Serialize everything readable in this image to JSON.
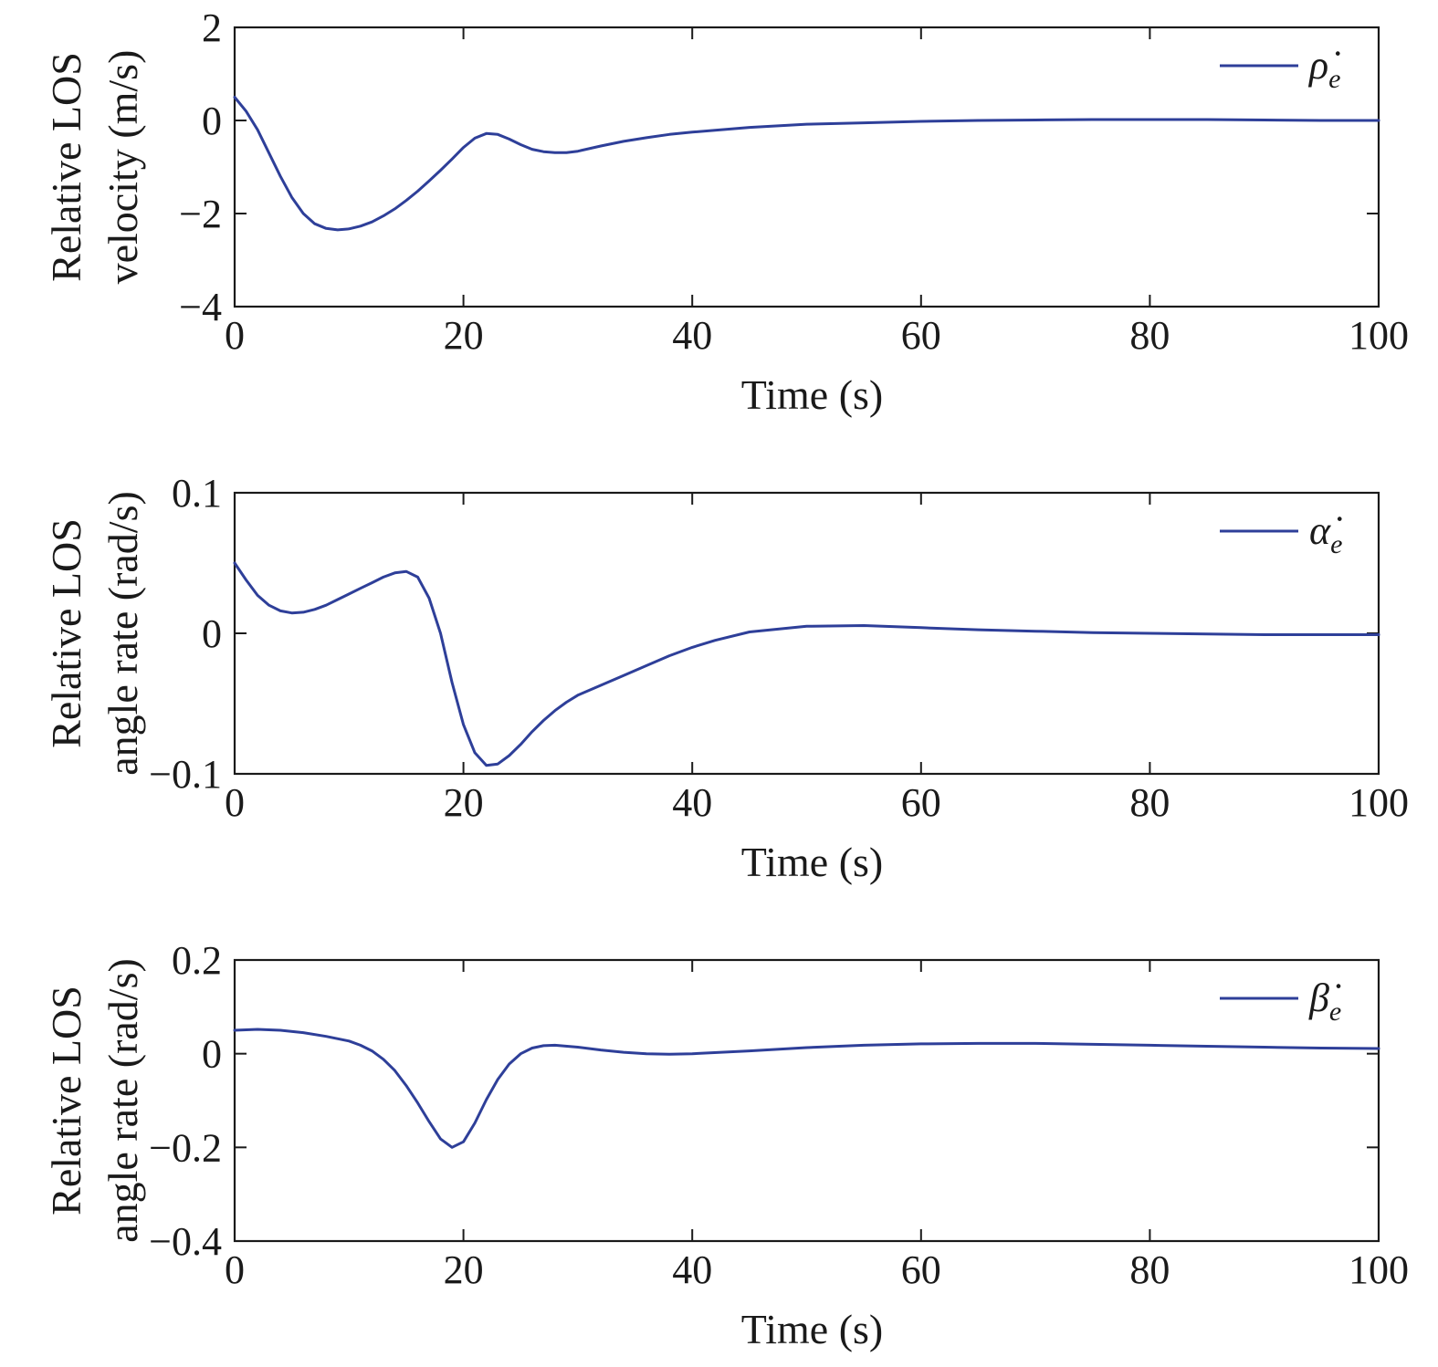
{
  "colors": {
    "series": "#2e3f99",
    "axis": "#1a1a1a"
  },
  "chart_data": [
    {
      "type": "line",
      "xlabel": "Time (s)",
      "ylabel": [
        "Relative LOS",
        "velocity (m/s)"
      ],
      "xlim": [
        0,
        100
      ],
      "ylim": [
        -4,
        2
      ],
      "xticks": [
        0,
        20,
        40,
        60,
        80,
        100
      ],
      "xtick_labels": [
        "0",
        "20",
        "40",
        "60",
        "80",
        "100"
      ],
      "yticks": [
        -4,
        -2,
        0,
        2
      ],
      "ytick_labels": [
        "−4",
        "−2",
        "0",
        "2"
      ],
      "grid": false,
      "legend_position": "top-right",
      "series": [
        {
          "name": "ρ̇e",
          "legend_symbol": "ρ̇",
          "legend_subscript": "e",
          "x": [
            0,
            1,
            2,
            3,
            4,
            5,
            6,
            7,
            8,
            9,
            10,
            11,
            12,
            13,
            14,
            15,
            16,
            17,
            18,
            19,
            20,
            21,
            22,
            23,
            24,
            25,
            26,
            27,
            28,
            29,
            30,
            32,
            34,
            36,
            38,
            40,
            45,
            50,
            55,
            60,
            65,
            70,
            75,
            80,
            85,
            90,
            95,
            100
          ],
          "y": [
            0.5,
            0.2,
            -0.2,
            -0.7,
            -1.2,
            -1.65,
            -2.0,
            -2.22,
            -2.32,
            -2.35,
            -2.33,
            -2.27,
            -2.18,
            -2.05,
            -1.9,
            -1.72,
            -1.52,
            -1.3,
            -1.07,
            -0.83,
            -0.58,
            -0.38,
            -0.28,
            -0.3,
            -0.4,
            -0.52,
            -0.62,
            -0.67,
            -0.69,
            -0.69,
            -0.66,
            -0.55,
            -0.45,
            -0.37,
            -0.3,
            -0.25,
            -0.15,
            -0.08,
            -0.05,
            -0.02,
            0.0,
            0.01,
            0.02,
            0.02,
            0.02,
            0.01,
            0.0,
            0.0
          ]
        }
      ]
    },
    {
      "type": "line",
      "xlabel": "Time (s)",
      "ylabel": [
        "Relative LOS",
        "angle rate (rad/s)"
      ],
      "xlim": [
        0,
        100
      ],
      "ylim": [
        -0.1,
        0.1
      ],
      "xticks": [
        0,
        20,
        40,
        60,
        80,
        100
      ],
      "xtick_labels": [
        "0",
        "20",
        "40",
        "60",
        "80",
        "100"
      ],
      "yticks": [
        -0.1,
        0,
        0.1
      ],
      "ytick_labels": [
        "−0.1",
        "0",
        "0.1"
      ],
      "grid": false,
      "legend_position": "top-right",
      "series": [
        {
          "name": "α̇e",
          "legend_symbol": "α̇",
          "legend_subscript": "e",
          "x": [
            0,
            1,
            2,
            3,
            4,
            5,
            6,
            7,
            8,
            9,
            10,
            11,
            12,
            13,
            14,
            15,
            16,
            17,
            18,
            19,
            20,
            21,
            22,
            23,
            24,
            25,
            26,
            27,
            28,
            29,
            30,
            32,
            34,
            36,
            38,
            40,
            42,
            45,
            50,
            55,
            60,
            65,
            70,
            75,
            80,
            85,
            90,
            95,
            100
          ],
          "y": [
            0.05,
            0.038,
            0.027,
            0.02,
            0.016,
            0.0145,
            0.015,
            0.017,
            0.02,
            0.024,
            0.028,
            0.032,
            0.036,
            0.04,
            0.043,
            0.044,
            0.04,
            0.025,
            0.0,
            -0.035,
            -0.065,
            -0.085,
            -0.094,
            -0.093,
            -0.087,
            -0.079,
            -0.07,
            -0.062,
            -0.055,
            -0.049,
            -0.044,
            -0.037,
            -0.03,
            -0.023,
            -0.016,
            -0.01,
            -0.005,
            0.001,
            0.005,
            0.0055,
            0.004,
            0.0025,
            0.0015,
            0.0005,
            0.0,
            -0.0005,
            -0.001,
            -0.001,
            -0.001
          ]
        }
      ]
    },
    {
      "type": "line",
      "xlabel": "Time (s)",
      "ylabel": [
        "Relative LOS",
        "angle rate (rad/s)"
      ],
      "xlim": [
        0,
        100
      ],
      "ylim": [
        -0.4,
        0.2
      ],
      "xticks": [
        0,
        20,
        40,
        60,
        80,
        100
      ],
      "xtick_labels": [
        "0",
        "20",
        "40",
        "60",
        "80",
        "100"
      ],
      "yticks": [
        -0.4,
        -0.2,
        0,
        0.2
      ],
      "ytick_labels": [
        "−0.4",
        "−0.2",
        "0",
        "0.2"
      ],
      "grid": false,
      "legend_position": "top-right",
      "series": [
        {
          "name": "β̇e",
          "legend_symbol": "β̇",
          "legend_subscript": "e",
          "x": [
            0,
            2,
            4,
            6,
            8,
            10,
            11,
            12,
            13,
            14,
            15,
            16,
            17,
            18,
            19,
            20,
            21,
            22,
            23,
            24,
            25,
            26,
            27,
            28,
            30,
            32,
            34,
            36,
            38,
            40,
            45,
            50,
            55,
            60,
            65,
            70,
            75,
            80,
            85,
            90,
            95,
            100
          ],
          "y": [
            0.05,
            0.052,
            0.05,
            0.045,
            0.037,
            0.027,
            0.018,
            0.006,
            -0.012,
            -0.036,
            -0.068,
            -0.105,
            -0.145,
            -0.182,
            -0.2,
            -0.188,
            -0.148,
            -0.098,
            -0.055,
            -0.022,
            0.0,
            0.012,
            0.017,
            0.018,
            0.014,
            0.008,
            0.003,
            0.0,
            -0.001,
            0.0,
            0.006,
            0.013,
            0.018,
            0.021,
            0.022,
            0.022,
            0.02,
            0.018,
            0.016,
            0.014,
            0.012,
            0.011
          ]
        }
      ]
    }
  ]
}
